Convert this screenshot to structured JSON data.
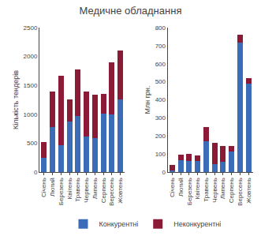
{
  "chart_data": [
    {
      "type": "bar",
      "title": "Медичне обладнання",
      "stacked": true,
      "categories": [
        "Січень",
        "Лютий",
        "Березень",
        "Квітень",
        "Травень",
        "Червень",
        "Липень",
        "Серпень",
        "Вересень",
        "Жовтень"
      ],
      "series": [
        {
          "name": "Конкурентні",
          "color": "#3B6CB8",
          "values": [
            250,
            780,
            470,
            880,
            975,
            620,
            590,
            1010,
            1000,
            1255
          ]
        },
        {
          "name": "Неконкурентні",
          "color": "#8B1A36",
          "values": [
            270,
            610,
            1200,
            380,
            800,
            775,
            750,
            340,
            900,
            855
          ]
        }
      ],
      "ylabel": "Кількість тендерів",
      "ylim": [
        0,
        2500
      ],
      "yticks": [
        0,
        500,
        1000,
        1500,
        2000,
        2500
      ],
      "grid": false,
      "legend": "bottom"
    },
    {
      "type": "bar",
      "stacked": true,
      "categories": [
        "Січень",
        "Лютий",
        "Березень",
        "Квітень",
        "Травень",
        "Червень",
        "Липень",
        "Серпень",
        "Вересень",
        "Жовтень"
      ],
      "series": [
        {
          "name": "Конкурентні",
          "color": "#3B6CB8",
          "values": [
            10,
            65,
            60,
            60,
            170,
            45,
            55,
            115,
            715,
            490
          ]
        },
        {
          "name": "Неконкурентні",
          "color": "#8B1A36",
          "values": [
            30,
            30,
            40,
            30,
            80,
            115,
            90,
            30,
            45,
            30
          ]
        }
      ],
      "ylabel": "Млн грн.",
      "ylim": [
        0,
        800
      ],
      "yticks": [
        0,
        100,
        200,
        300,
        400,
        500,
        600,
        700,
        800
      ],
      "grid": false,
      "legend": "bottom"
    }
  ]
}
